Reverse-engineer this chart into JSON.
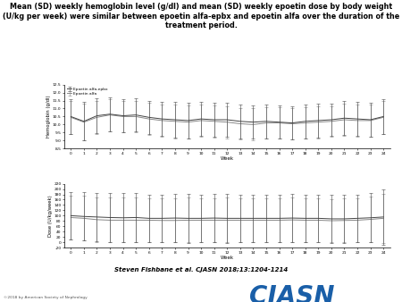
{
  "title": "Mean (SD) weekly hemoglobin level (g/dl) and mean (SD) weekly epoetin dose by body weight\n(U/kg per week) were similar between epoetin alfa-epbx and epoetin alfa over the duration of the\ntreatment period.",
  "weeks": [
    0,
    1,
    2,
    3,
    4,
    5,
    6,
    7,
    8,
    9,
    10,
    11,
    12,
    13,
    14,
    15,
    16,
    17,
    18,
    19,
    20,
    21,
    22,
    23,
    24
  ],
  "hgb_epbx_mean": [
    10.5,
    10.2,
    10.55,
    10.65,
    10.55,
    10.6,
    10.45,
    10.35,
    10.3,
    10.25,
    10.35,
    10.3,
    10.3,
    10.2,
    10.15,
    10.2,
    10.15,
    10.1,
    10.2,
    10.25,
    10.3,
    10.4,
    10.35,
    10.3,
    10.5
  ],
  "hgb_epbx_sd": [
    1.1,
    1.2,
    1.1,
    1.05,
    1.05,
    1.05,
    1.05,
    1.05,
    1.1,
    1.1,
    1.05,
    1.05,
    1.05,
    1.05,
    1.05,
    1.05,
    1.05,
    1.05,
    1.05,
    1.05,
    1.0,
    1.05,
    1.05,
    1.05,
    1.1
  ],
  "hgb_alfa_mean": [
    10.45,
    10.15,
    10.45,
    10.6,
    10.5,
    10.5,
    10.35,
    10.25,
    10.2,
    10.15,
    10.25,
    10.2,
    10.15,
    10.05,
    10.0,
    10.1,
    10.1,
    10.05,
    10.1,
    10.15,
    10.2,
    10.3,
    10.25,
    10.25,
    10.45
  ],
  "hgb_alfa_sd": [
    1.05,
    1.15,
    1.05,
    1.0,
    1.0,
    1.0,
    1.0,
    1.0,
    1.05,
    1.05,
    1.0,
    1.0,
    1.0,
    1.0,
    1.0,
    1.0,
    1.0,
    1.0,
    1.0,
    1.0,
    0.95,
    1.0,
    1.0,
    1.0,
    1.05
  ],
  "dose_epbx_mean": [
    100,
    97,
    95,
    93,
    92,
    93,
    90,
    90,
    91,
    90,
    90,
    91,
    90,
    90,
    90,
    90,
    90,
    91,
    90,
    90,
    88,
    88,
    90,
    92,
    95
  ],
  "dose_epbx_sd": [
    88,
    90,
    90,
    92,
    92,
    92,
    90,
    90,
    90,
    92,
    90,
    90,
    92,
    90,
    90,
    90,
    90,
    92,
    90,
    90,
    90,
    90,
    90,
    92,
    105
  ],
  "dose_alfa_mean": [
    93,
    90,
    85,
    83,
    83,
    83,
    83,
    82,
    82,
    83,
    83,
    83,
    83,
    83,
    83,
    83,
    83,
    84,
    83,
    83,
    81,
    82,
    83,
    86,
    90
  ],
  "dose_alfa_sd": [
    82,
    84,
    84,
    84,
    84,
    84,
    82,
    82,
    82,
    84,
    82,
    82,
    84,
    82,
    82,
    82,
    82,
    84,
    82,
    82,
    82,
    82,
    82,
    84,
    92
  ],
  "hgb_ylim": [
    8.5,
    12.5
  ],
  "hgb_yticks": [
    8.5,
    9.0,
    9.5,
    10.0,
    10.5,
    11.0,
    11.5,
    12.0,
    12.5
  ],
  "dose_ylim": [
    -20,
    220
  ],
  "dose_yticks": [
    -20,
    0,
    20,
    40,
    60,
    80,
    100,
    120,
    140,
    160,
    180,
    200,
    220
  ],
  "xlabel": "Week",
  "hgb_ylabel": "Hemoglobin (g/dl)",
  "dose_ylabel": "Dose (U/kg/week)",
  "legend_epbx": "Epoetin alfa-epbx",
  "legend_alfa": "Epoetin alfa",
  "color_epbx": "#444444",
  "color_alfa": "#888888",
  "citation": "Steven Fishbane et al. CJASN 2018;13:1204-1214",
  "cjasn_text": "CJASN",
  "copyright": "©2018 by American Society of Nephrology",
  "background_color": "#ffffff"
}
